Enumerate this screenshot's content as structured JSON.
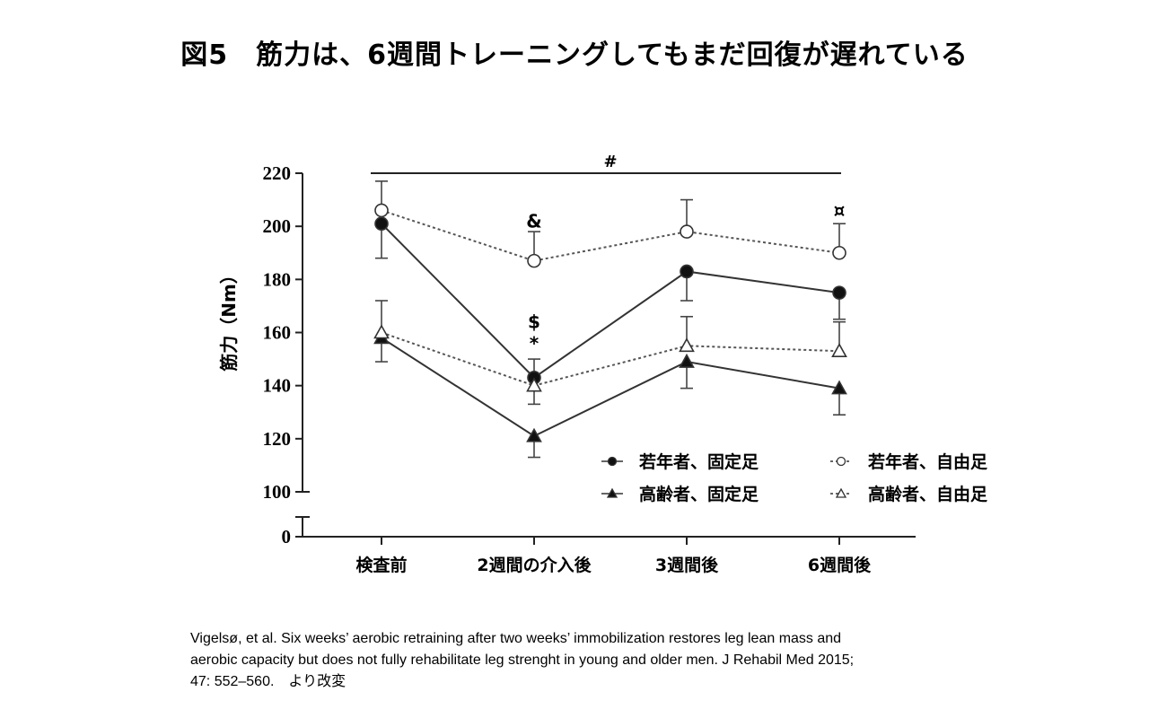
{
  "page": {
    "title": "図5　筋力は、6週間トレーニングしてもまだ回復が遅れている",
    "citation_lines": [
      "Vigelsø, et al. Six weeks’ aerobic retraining after two weeks’ immobilization restores leg lean mass and",
      "aerobic capacity but does not fully rehabilitate leg strenght in young and older men. J Rehabil Med 2015;",
      "47: 552–560.　より改変"
    ]
  },
  "chart_data": {
    "type": "line",
    "ylabel": "筋力（Nm）",
    "xlabel": "",
    "categories": [
      "検査前",
      "2週間の介入後",
      "3週間後",
      "6週間後"
    ],
    "y_ticks": [
      0,
      100,
      120,
      140,
      160,
      180,
      200,
      220
    ],
    "ylim": [
      0,
      220
    ],
    "axis_break": true,
    "grid": false,
    "legend_placement": "bottom-right",
    "series": [
      {
        "name": "若年者、固定足",
        "marker": "filled-circle",
        "line": "solid",
        "values": [
          201,
          143,
          183,
          175
        ],
        "error_upper": [
          null,
          150,
          null,
          null
        ],
        "error_lower": [
          188,
          null,
          172,
          165
        ]
      },
      {
        "name": "若年者、自由足",
        "marker": "open-circle",
        "line": "dotted",
        "values": [
          206,
          187,
          198,
          190
        ],
        "error_upper": [
          217,
          198,
          210,
          201
        ],
        "error_lower": [
          null,
          null,
          null,
          null
        ]
      },
      {
        "name": "高齢者、固定足",
        "marker": "filled-triangle",
        "line": "solid",
        "values": [
          158,
          121,
          149,
          139
        ],
        "error_upper": [
          null,
          null,
          null,
          null
        ],
        "error_lower": [
          149,
          113,
          139,
          129
        ]
      },
      {
        "name": "高齢者、自由足",
        "marker": "open-triangle",
        "line": "dotted",
        "values": [
          160,
          140,
          155,
          153
        ],
        "error_upper": [
          172,
          null,
          166,
          164
        ],
        "error_lower": [
          null,
          133,
          null,
          null
        ]
      }
    ],
    "annotations": [
      {
        "text": "#",
        "position": "top-bracket",
        "span": [
          "検査前",
          "6週間後"
        ]
      },
      {
        "text": "&",
        "category": "2週間の介入後",
        "y": 202
      },
      {
        "text": "$",
        "category": "2週間の介入後",
        "y": 164
      },
      {
        "text": "*",
        "category": "2週間の介入後",
        "y": 156
      },
      {
        "text": "¤",
        "category": "6週間後",
        "y": 206
      }
    ]
  }
}
